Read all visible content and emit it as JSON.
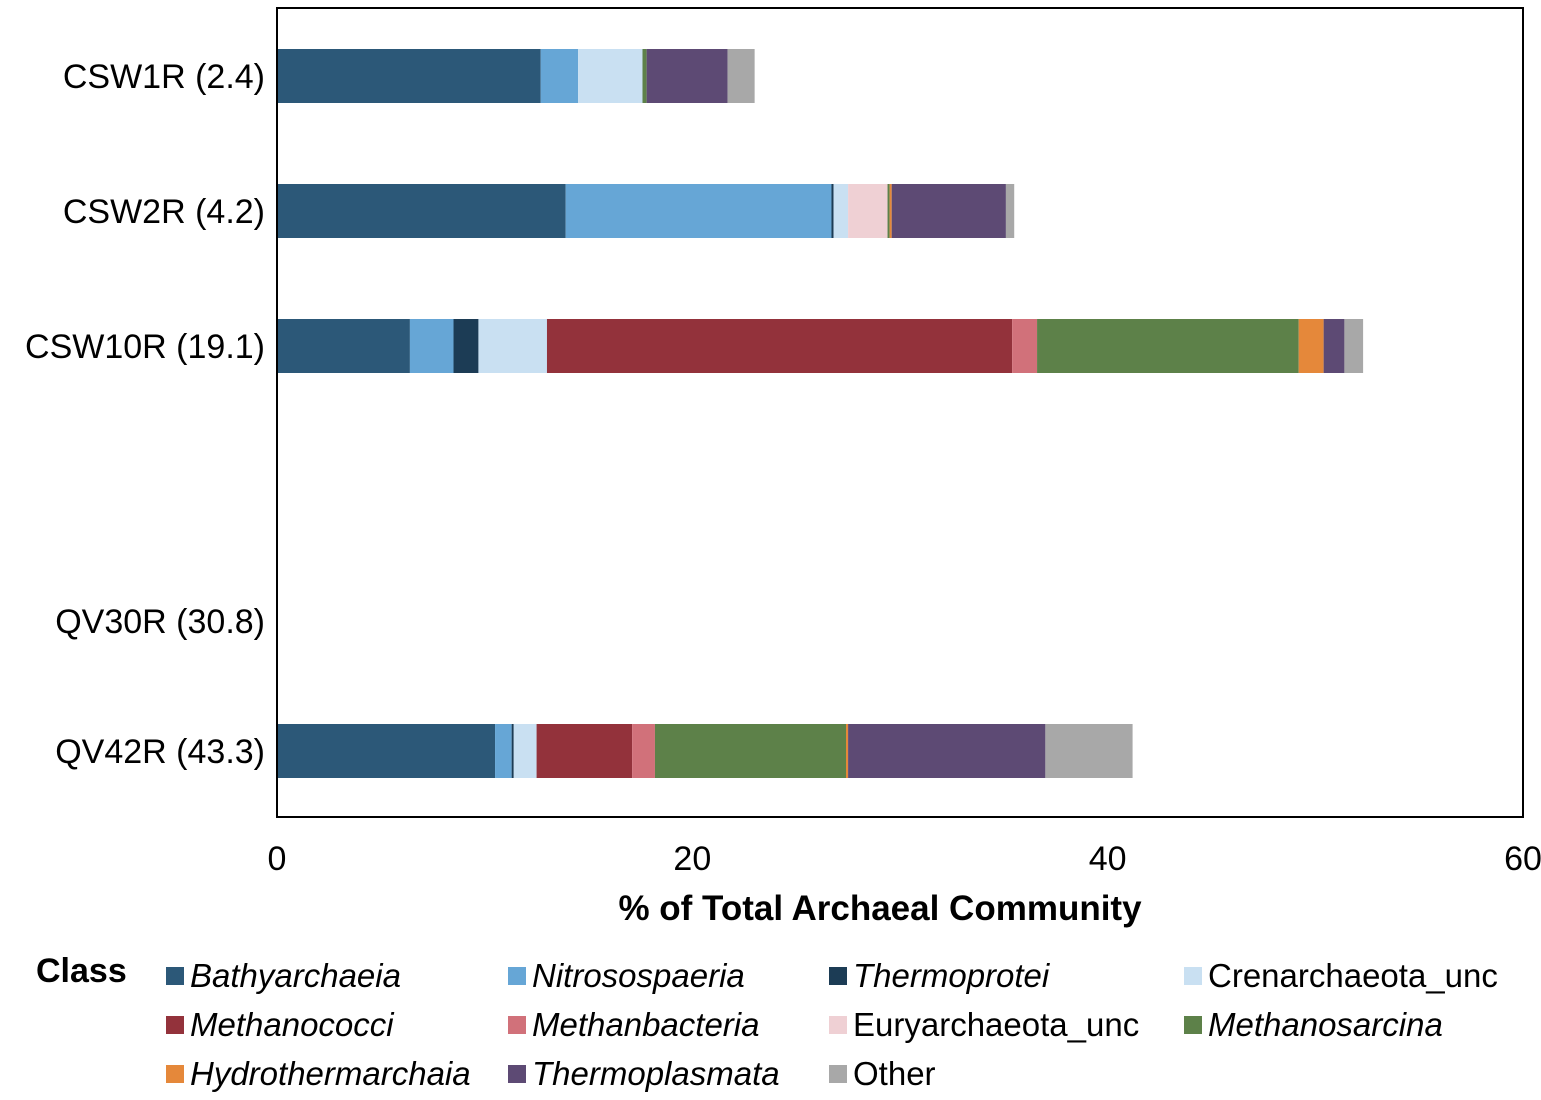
{
  "chart_data": {
    "type": "bar",
    "orientation": "horizontal",
    "stacked": true,
    "title": "",
    "xlabel": "% of Total Archaeal Community",
    "ylabel": "",
    "xlim": [
      0,
      60
    ],
    "xticks": [
      0,
      20,
      40,
      60
    ],
    "grid": false,
    "categories": [
      "CSW1R (2.4)",
      "CSW2R (4.2)",
      "CSW10R (19.1)",
      "QV30R (30.8)",
      "QV42R (43.3)"
    ],
    "legend_title": "Class",
    "legend_position": "bottom",
    "series": [
      {
        "name": "Bathyarchaeia",
        "italic": true,
        "color": "#2c5878",
        "values": [
          12.7,
          13.9,
          6.4,
          0,
          10.5
        ]
      },
      {
        "name": "Nitrosospaeria",
        "italic": true,
        "color": "#66a6d6",
        "values": [
          1.8,
          12.8,
          2.1,
          0,
          0.8
        ]
      },
      {
        "name": "Thermoprotei",
        "italic": true,
        "color": "#1c3c55",
        "values": [
          0,
          0.1,
          1.2,
          0,
          0.1
        ]
      },
      {
        "name": "Crenarchaeota_unc",
        "italic": false,
        "color": "#c9e0f2",
        "values": [
          3.1,
          0.7,
          3.3,
          0,
          1.1
        ]
      },
      {
        "name": "Methanococci",
        "italic": true,
        "color": "#93323b",
        "values": [
          0,
          0,
          22.4,
          0,
          4.6
        ]
      },
      {
        "name": "Methanbacteria",
        "italic": true,
        "color": "#d1717a",
        "values": [
          0,
          0,
          1.2,
          0,
          1.1
        ]
      },
      {
        "name": "Euryarchaeota_unc",
        "italic": false,
        "color": "#efd0d4",
        "values": [
          0,
          1.9,
          0,
          0,
          0
        ]
      },
      {
        "name": "Methanosarcina",
        "italic": true,
        "color": "#5d8149",
        "values": [
          0.2,
          0.1,
          12.6,
          0,
          9.2
        ]
      },
      {
        "name": "Hydrothermarchaia",
        "italic": true,
        "color": "#e5883a",
        "values": [
          0,
          0.1,
          1.2,
          0,
          0.1
        ]
      },
      {
        "name": "Thermoplasmata",
        "italic": true,
        "color": "#5d4a74",
        "values": [
          3.9,
          5.5,
          1.0,
          0,
          9.5
        ]
      },
      {
        "name": "Other",
        "italic": false,
        "color": "#a8a8a8",
        "values": [
          1.3,
          0.4,
          0.9,
          0,
          4.2
        ]
      }
    ]
  }
}
